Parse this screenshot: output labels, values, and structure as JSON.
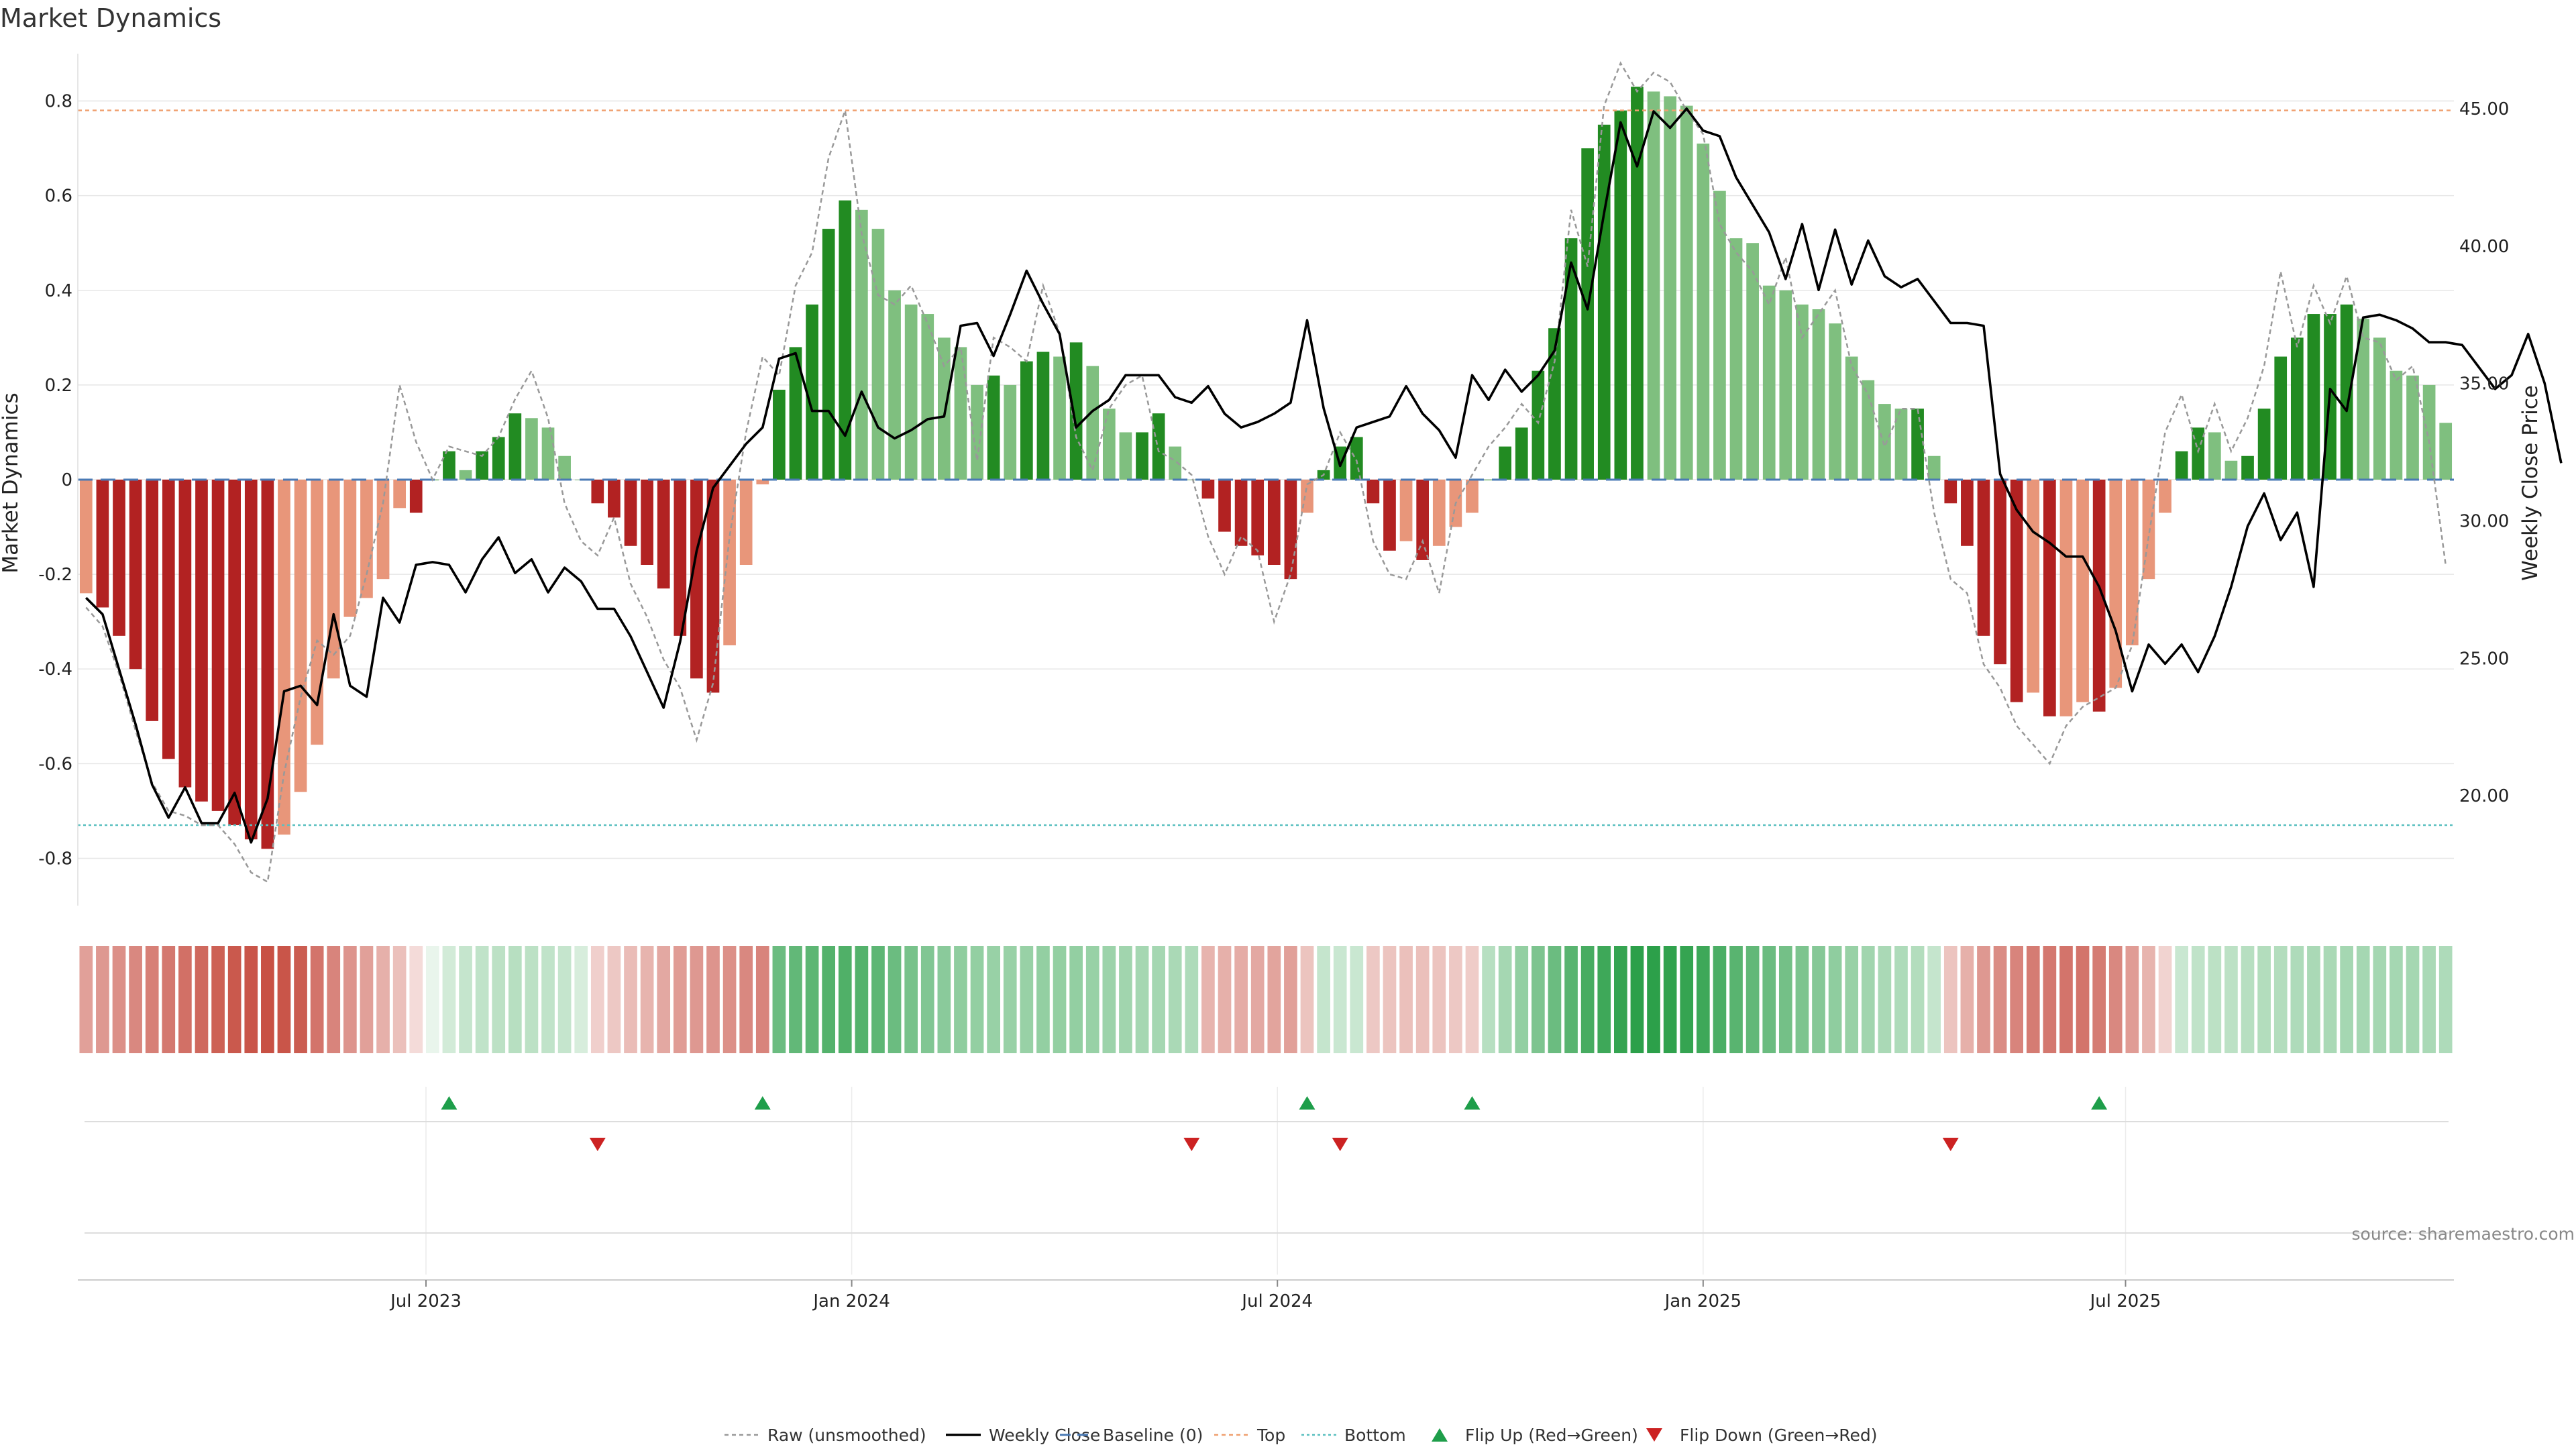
{
  "chart_data": {
    "type": "bar",
    "title": "Market Dynamics",
    "ylabel_left": "Market Dynamics",
    "ylabel_right": "Weekly Close Price",
    "ylim_left": [
      -0.9,
      0.9
    ],
    "ylim_right": [
      16.0,
      47.0
    ],
    "left_ticks": [
      "0.8",
      "0.6",
      "0.4",
      "0.2",
      "0",
      "-0.2",
      "-0.4",
      "-0.6",
      "-0.8"
    ],
    "right_ticks": [
      "45.00",
      "40.00",
      "35.00",
      "30.00",
      "25.00",
      "20.00"
    ],
    "x_tick_labels": [
      "Jul 2023",
      "Jan 2024",
      "Jul 2024",
      "Jan 2025",
      "Jul 2025"
    ],
    "x_tick_weeks": [
      20.6,
      46.4,
      72.2,
      98.0,
      123.6
    ],
    "top_level": 0.78,
    "bottom_level": -0.73,
    "baseline": 0,
    "colors": {
      "strong_up": "#228b22",
      "weak_up": "#7fbf7f",
      "strong_down": "#b22222",
      "weak_down": "#e8967a",
      "close_line": "#000000",
      "raw_line": "#999999",
      "baseline": "#4a7ab5",
      "top": "#f0a070",
      "bottom": "#5bc0c0",
      "flip_up": "#1e9e4a",
      "flip_down": "#cc2222"
    },
    "smoothed": [
      -0.24,
      -0.27,
      -0.33,
      -0.4,
      -0.51,
      -0.59,
      -0.65,
      -0.68,
      -0.7,
      -0.73,
      -0.76,
      -0.78,
      -0.75,
      -0.66,
      -0.56,
      -0.42,
      -0.29,
      -0.25,
      -0.21,
      -0.06,
      -0.07,
      0.0,
      0.06,
      0.02,
      0.06,
      0.09,
      0.14,
      0.13,
      0.11,
      0.05,
      0.0,
      -0.05,
      -0.08,
      -0.14,
      -0.18,
      -0.23,
      -0.33,
      -0.42,
      -0.45,
      -0.35,
      -0.18,
      -0.01,
      0.19,
      0.28,
      0.37,
      0.53,
      0.59,
      0.57,
      0.53,
      0.4,
      0.37,
      0.35,
      0.3,
      0.28,
      0.2,
      0.22,
      0.2,
      0.25,
      0.27,
      0.26,
      0.29,
      0.24,
      0.15,
      0.1,
      0.1,
      0.14,
      0.07,
      0.0,
      -0.04,
      -0.11,
      -0.14,
      -0.16,
      -0.18,
      -0.21,
      -0.07,
      0.02,
      0.07,
      0.09,
      -0.05,
      -0.15,
      -0.13,
      -0.17,
      -0.14,
      -0.1,
      -0.07,
      0.0,
      0.07,
      0.11,
      0.23,
      0.32,
      0.51,
      0.7,
      0.75,
      0.78,
      0.83,
      0.82,
      0.81,
      0.79,
      0.71,
      0.61,
      0.51,
      0.5,
      0.41,
      0.4,
      0.37,
      0.36,
      0.33,
      0.26,
      0.21,
      0.16,
      0.15,
      0.15,
      0.05,
      -0.05,
      -0.14,
      -0.33,
      -0.39,
      -0.47,
      -0.45,
      -0.5,
      -0.5,
      -0.47,
      -0.49,
      -0.44,
      -0.35,
      -0.21,
      -0.07,
      0.06,
      0.11,
      0.1,
      0.04,
      0.05,
      0.15,
      0.26,
      0.3,
      0.35,
      0.35,
      0.37,
      0.34,
      0.3,
      0.23,
      0.22,
      0.2,
      0.12
    ],
    "weekly_close": [
      27.2,
      26.6,
      24.6,
      22.6,
      20.4,
      19.2,
      20.3,
      19.0,
      19.0,
      20.1,
      18.3,
      19.9,
      23.8,
      24.0,
      23.3,
      26.6,
      24.0,
      23.6,
      27.2,
      26.3,
      28.4,
      28.5,
      28.4,
      27.4,
      28.6,
      29.4,
      28.1,
      28.6,
      27.4,
      28.3,
      27.8,
      26.8,
      26.8,
      25.8,
      24.5,
      23.2,
      25.6,
      28.9,
      31.2,
      32.0,
      32.8,
      33.4,
      35.9,
      36.1,
      34.0,
      34.0,
      33.1,
      34.7,
      33.4,
      33.0,
      33.3,
      33.7,
      33.8,
      37.1,
      37.2,
      36.0,
      37.5,
      39.1,
      37.9,
      36.8,
      33.4,
      34.0,
      34.4,
      35.3,
      35.3,
      35.3,
      34.5,
      34.3,
      34.9,
      33.9,
      33.4,
      33.6,
      33.9,
      34.3,
      37.3,
      34.1,
      32.0,
      33.4,
      33.6,
      33.8,
      34.9,
      33.9,
      33.3,
      32.3,
      35.3,
      34.4,
      35.5,
      34.7,
      35.3,
      36.2,
      39.4,
      37.7,
      41.2,
      44.5,
      42.9,
      44.9,
      44.3,
      45.0,
      44.2,
      44.0,
      42.5,
      41.5,
      40.5,
      38.8,
      40.8,
      38.4,
      40.6,
      38.6,
      40.2,
      38.9,
      38.5,
      38.8,
      38.0,
      37.2,
      37.2,
      37.1,
      31.7,
      30.4,
      29.6,
      29.2,
      28.7,
      28.7,
      27.6,
      26.0,
      23.8,
      25.5,
      24.8,
      25.5,
      24.5,
      25.8,
      27.6,
      29.8,
      31.0,
      29.3,
      30.3,
      27.6,
      34.8,
      34.0,
      37.4,
      37.5,
      37.3,
      37.0,
      36.5,
      36.5,
      36.4,
      35.6,
      34.8,
      35.3,
      36.8,
      35.0,
      32.1
    ],
    "raw": [
      -0.27,
      -0.31,
      -0.41,
      -0.53,
      -0.64,
      -0.7,
      -0.71,
      -0.73,
      -0.73,
      -0.77,
      -0.83,
      -0.85,
      -0.62,
      -0.46,
      -0.34,
      -0.37,
      -0.33,
      -0.2,
      -0.05,
      0.2,
      0.08,
      0.0,
      0.07,
      0.06,
      0.05,
      0.09,
      0.17,
      0.23,
      0.13,
      -0.05,
      -0.13,
      -0.16,
      -0.08,
      -0.22,
      -0.29,
      -0.38,
      -0.44,
      -0.55,
      -0.43,
      -0.12,
      0.1,
      0.26,
      0.22,
      0.41,
      0.48,
      0.68,
      0.78,
      0.52,
      0.39,
      0.37,
      0.41,
      0.33,
      0.24,
      0.28,
      0.04,
      0.3,
      0.28,
      0.25,
      0.41,
      0.31,
      0.09,
      0.02,
      0.15,
      0.2,
      0.22,
      0.06,
      0.04,
      0.01,
      -0.12,
      -0.2,
      -0.12,
      -0.15,
      -0.3,
      -0.2,
      -0.01,
      0.01,
      0.1,
      0.04,
      -0.13,
      -0.2,
      -0.21,
      -0.13,
      -0.24,
      -0.05,
      0.01,
      0.07,
      0.11,
      0.16,
      0.12,
      0.25,
      0.57,
      0.45,
      0.79,
      0.88,
      0.82,
      0.86,
      0.84,
      0.78,
      0.73,
      0.54,
      0.48,
      0.44,
      0.37,
      0.47,
      0.3,
      0.35,
      0.4,
      0.24,
      0.18,
      0.07,
      0.15,
      0.15,
      -0.07,
      -0.21,
      -0.24,
      -0.39,
      -0.44,
      -0.52,
      -0.56,
      -0.6,
      -0.52,
      -0.48,
      -0.46,
      -0.44,
      -0.35,
      -0.12,
      0.1,
      0.18,
      0.06,
      0.16,
      0.06,
      0.13,
      0.24,
      0.44,
      0.28,
      0.41,
      0.33,
      0.43,
      0.3,
      0.29,
      0.21,
      0.24,
      0.08,
      -0.18
    ],
    "heat_strength": [
      0.48,
      0.52,
      0.56,
      0.6,
      0.64,
      0.68,
      0.72,
      0.76,
      0.8,
      0.84,
      0.86,
      0.88,
      0.86,
      0.82,
      0.7,
      0.62,
      0.54,
      0.48,
      0.4,
      0.32,
      0.18,
      0.1,
      0.2,
      0.26,
      0.28,
      0.3,
      0.32,
      0.3,
      0.28,
      0.26,
      0.18,
      0.24,
      0.28,
      0.34,
      0.38,
      0.44,
      0.5,
      0.52,
      0.54,
      0.56,
      0.6,
      0.62,
      0.66,
      0.7,
      0.72,
      0.76,
      0.78,
      0.76,
      0.72,
      0.66,
      0.6,
      0.56,
      0.52,
      0.5,
      0.48,
      0.46,
      0.46,
      0.46,
      0.48,
      0.48,
      0.48,
      0.46,
      0.44,
      0.42,
      0.4,
      0.4,
      0.38,
      0.36,
      0.38,
      0.4,
      0.42,
      0.44,
      0.46,
      0.48,
      0.3,
      0.26,
      0.24,
      0.24,
      0.28,
      0.3,
      0.32,
      0.32,
      0.3,
      0.28,
      0.26,
      0.32,
      0.4,
      0.48,
      0.58,
      0.66,
      0.74,
      0.82,
      0.86,
      0.9,
      0.94,
      0.94,
      0.92,
      0.9,
      0.86,
      0.8,
      0.74,
      0.7,
      0.66,
      0.62,
      0.58,
      0.54,
      0.5,
      0.46,
      0.42,
      0.38,
      0.36,
      0.34,
      0.26,
      0.3,
      0.4,
      0.52,
      0.58,
      0.62,
      0.66,
      0.68,
      0.7,
      0.7,
      0.66,
      0.6,
      0.5,
      0.38,
      0.22,
      0.24,
      0.28,
      0.3,
      0.3,
      0.32,
      0.34,
      0.34,
      0.36,
      0.38,
      0.38,
      0.4,
      0.4,
      0.4,
      0.4,
      0.4,
      0.38,
      0.36,
      0.34
    ],
    "flip_up_weeks": [
      22,
      41,
      74,
      84,
      122
    ],
    "flip_down_weeks": [
      31,
      67,
      76,
      113
    ],
    "legend": [
      "Raw (unsmoothed)",
      "Weekly Close",
      "Baseline (0)",
      "Top",
      "Bottom",
      "Flip Up (Red→Green)",
      "Flip Down (Green→Red)"
    ],
    "source": "source: sharemaestro.com"
  }
}
